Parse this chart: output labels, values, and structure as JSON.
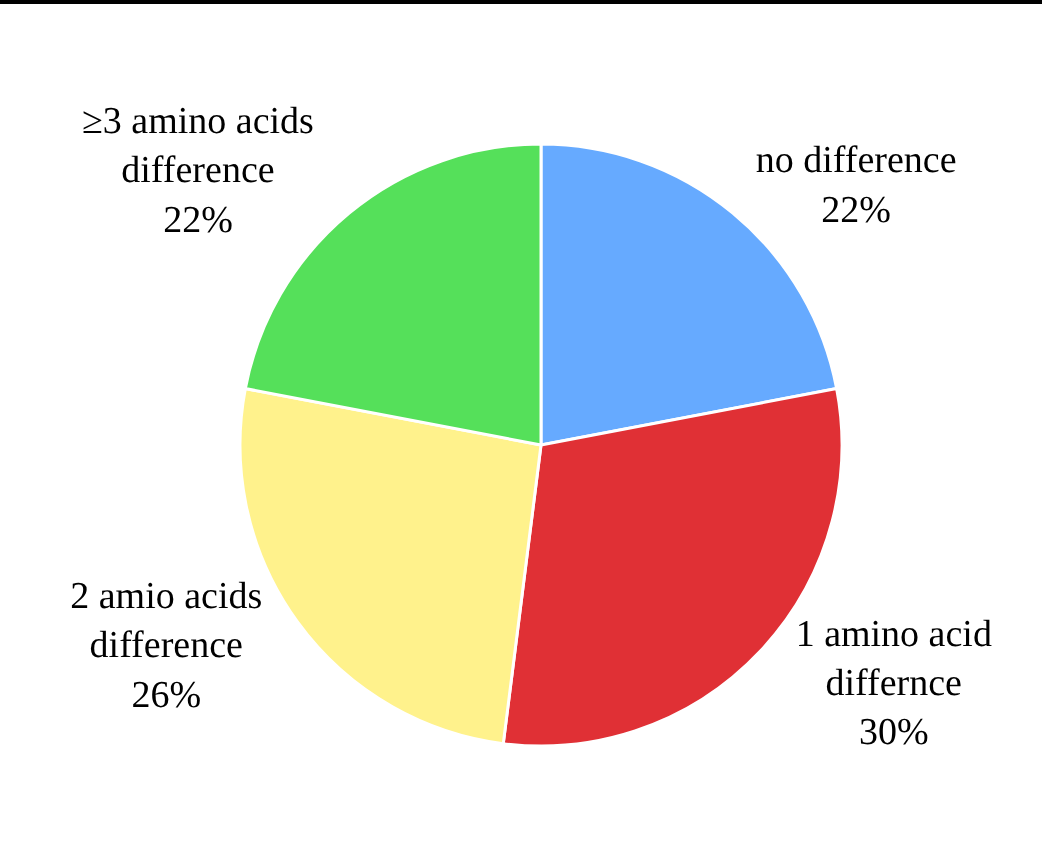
{
  "chart_data": {
    "type": "pie",
    "categories": [
      "no difference",
      "1 amino acid differnce",
      "2 amio acids difference",
      "≥3 amino acids difference"
    ],
    "values": [
      22,
      30,
      26,
      22
    ],
    "value_labels": [
      "22%",
      "30%",
      "26%",
      "22%"
    ],
    "colors": [
      "#66aaff",
      "#e03035",
      "#fff28c",
      "#55e05a"
    ],
    "legend": false
  }
}
